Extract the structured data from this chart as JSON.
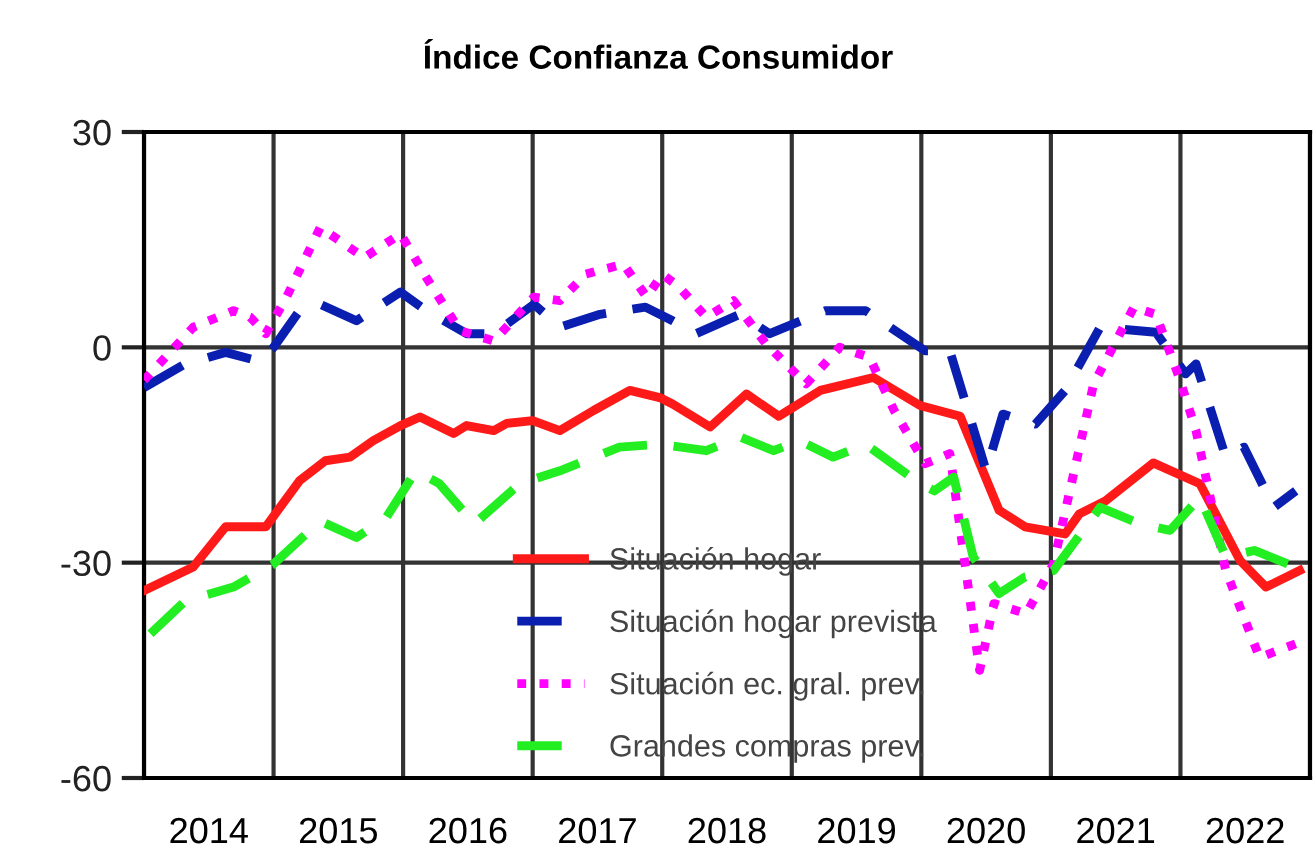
{
  "chart_data": {
    "type": "line",
    "title": "Índice Confianza Consumidor",
    "xlim": [
      2014,
      2023
    ],
    "xticks": [
      {
        "value": 2014,
        "label": null
      },
      {
        "value": 2014.5,
        "label": "2014"
      },
      {
        "value": 2015,
        "label": null
      },
      {
        "value": 2015.5,
        "label": "2015"
      },
      {
        "value": 2016,
        "label": null
      },
      {
        "value": 2016.5,
        "label": "2016"
      },
      {
        "value": 2017,
        "label": null
      },
      {
        "value": 2017.5,
        "label": "2017"
      },
      {
        "value": 2018,
        "label": null
      },
      {
        "value": 2018.5,
        "label": "2018"
      },
      {
        "value": 2019,
        "label": null
      },
      {
        "value": 2019.5,
        "label": "2019"
      },
      {
        "value": 2020,
        "label": null
      },
      {
        "value": 2020.5,
        "label": "2020"
      },
      {
        "value": 2021,
        "label": null
      },
      {
        "value": 2021.5,
        "label": "2021"
      },
      {
        "value": 2022,
        "label": null
      },
      {
        "value": 2022.5,
        "label": "2022"
      },
      {
        "value": 2023,
        "label": null
      }
    ],
    "ylim": [
      -60,
      30
    ],
    "yticks": [
      -60,
      -30,
      0,
      30
    ],
    "grid": true,
    "legend": "bottom",
    "series": [
      {
        "name": "Situación hogar",
        "color": "#ff1a1a",
        "line_style": "solid",
        "x": [
          2014.0,
          2014.38,
          2014.63,
          2014.94,
          2015.2,
          2015.4,
          2015.59,
          2015.77,
          2015.98,
          2016.13,
          2016.39,
          2016.49,
          2016.7,
          2016.8,
          2017.0,
          2017.21,
          2017.47,
          2017.75,
          2017.98,
          2018.08,
          2018.37,
          2018.65,
          2018.9,
          2019.22,
          2019.63,
          2019.99,
          2020.3,
          2020.6,
          2020.8,
          2021.11,
          2021.22,
          2021.42,
          2021.79,
          2022.15,
          2022.46,
          2022.66,
          2022.92
        ],
        "values": [
          -33.9,
          -30.6,
          -25,
          -25,
          -18.6,
          -15.8,
          -15.3,
          -13,
          -10.9,
          -9.7,
          -12,
          -10.9,
          -11.6,
          -10.6,
          -10.2,
          -11.6,
          -8.8,
          -6,
          -7,
          -7.9,
          -11.1,
          -6.5,
          -9.6,
          -6,
          -4.2,
          -8.1,
          -9.6,
          -22.7,
          -25,
          -26,
          -23.2,
          -21.4,
          -16.1,
          -19,
          -29.7,
          -33.4,
          -31.1
        ]
      },
      {
        "name": "Situación hogar prevista",
        "color": "#0a1fb0",
        "line_style": "dashed",
        "x": [
          2014.0,
          2014.32,
          2014.63,
          2014.9,
          2015.0,
          2015.2,
          2015.36,
          2015.64,
          2015.98,
          2016.18,
          2016.49,
          2016.7,
          2017.01,
          2017.21,
          2017.52,
          2017.87,
          2018.08,
          2018.26,
          2018.6,
          2018.83,
          2019.26,
          2019.57,
          2020.03,
          2020.22,
          2020.5,
          2020.63,
          2020.88,
          2021.11,
          2021.38,
          2021.81,
          2022.04,
          2022.12,
          2022.35,
          2022.49,
          2022.72,
          2022.89
        ],
        "values": [
          -5.6,
          -2.3,
          -0.7,
          -2,
          0,
          5.1,
          6,
          3.7,
          7.7,
          5.1,
          1.9,
          1.9,
          6,
          2.8,
          4.6,
          5.6,
          3.7,
          1.9,
          4.6,
          1.9,
          5.1,
          5.1,
          -0.5,
          -0.5,
          -17.2,
          -9.3,
          -10.7,
          -6,
          2.8,
          2.1,
          -3.7,
          -2.3,
          -15.3,
          -13.9,
          -22.3,
          -20
        ]
      },
      {
        "name": "Situación ec. gral. prev.",
        "color": "#ff00ff",
        "line_style": "dotted",
        "x": [
          2014.0,
          2014.38,
          2014.69,
          2014.82,
          2014.94,
          2015.1,
          2015.36,
          2015.7,
          2015.98,
          2016.18,
          2016.44,
          2016.7,
          2017.01,
          2017.21,
          2017.41,
          2017.7,
          2017.88,
          2018.0,
          2018.13,
          2018.34,
          2018.55,
          2018.8,
          2019.11,
          2019.37,
          2019.6,
          2019.79,
          2020.03,
          2020.22,
          2020.45,
          2020.56,
          2020.81,
          2021.02,
          2021.33,
          2021.64,
          2021.81,
          2021.99,
          2022.12,
          2022.35,
          2022.61,
          2022.89
        ],
        "values": [
          -4.6,
          2.8,
          5.1,
          4.2,
          1.9,
          7,
          16.7,
          12.5,
          15.8,
          9.7,
          2.3,
          0.9,
          7,
          6.5,
          10.2,
          11.6,
          7,
          10.2,
          8.4,
          4.2,
          6.5,
          0.5,
          -5.1,
          0,
          -1.4,
          -8.8,
          -16.2,
          -14.8,
          -45,
          -35.7,
          -37.1,
          -30.2,
          -5.1,
          5.6,
          4.6,
          -4.2,
          -11.6,
          -31.1,
          -43.2,
          -41.3
        ]
      },
      {
        "name": "Grandes compras prev.",
        "color": "#22ee22",
        "line_style": "dashed",
        "x": [
          2014.05,
          2014.32,
          2014.69,
          2015.0,
          2015.36,
          2015.64,
          2015.87,
          2016.1,
          2016.28,
          2016.55,
          2016.9,
          2017.21,
          2017.67,
          2017.98,
          2018.34,
          2018.6,
          2018.86,
          2019.06,
          2019.32,
          2019.57,
          2019.99,
          2020.1,
          2020.25,
          2020.4,
          2020.6,
          2020.8,
          2021.02,
          2021.38,
          2021.69,
          2021.92,
          2022.15,
          2022.35,
          2022.57,
          2022.89
        ],
        "values": [
          -39.9,
          -35.3,
          -33.4,
          -30.2,
          -24.2,
          -26.5,
          -23.7,
          -17.2,
          -19,
          -24.6,
          -19,
          -17.2,
          -13.9,
          -13.5,
          -14.4,
          -12.5,
          -14.4,
          -13,
          -15.3,
          -13.5,
          -19,
          -20,
          -18.1,
          -29.2,
          -34.3,
          -32,
          -31.1,
          -22.3,
          -24.6,
          -25.5,
          -20.9,
          -29.2,
          -28.3,
          -30.6
        ]
      }
    ]
  }
}
